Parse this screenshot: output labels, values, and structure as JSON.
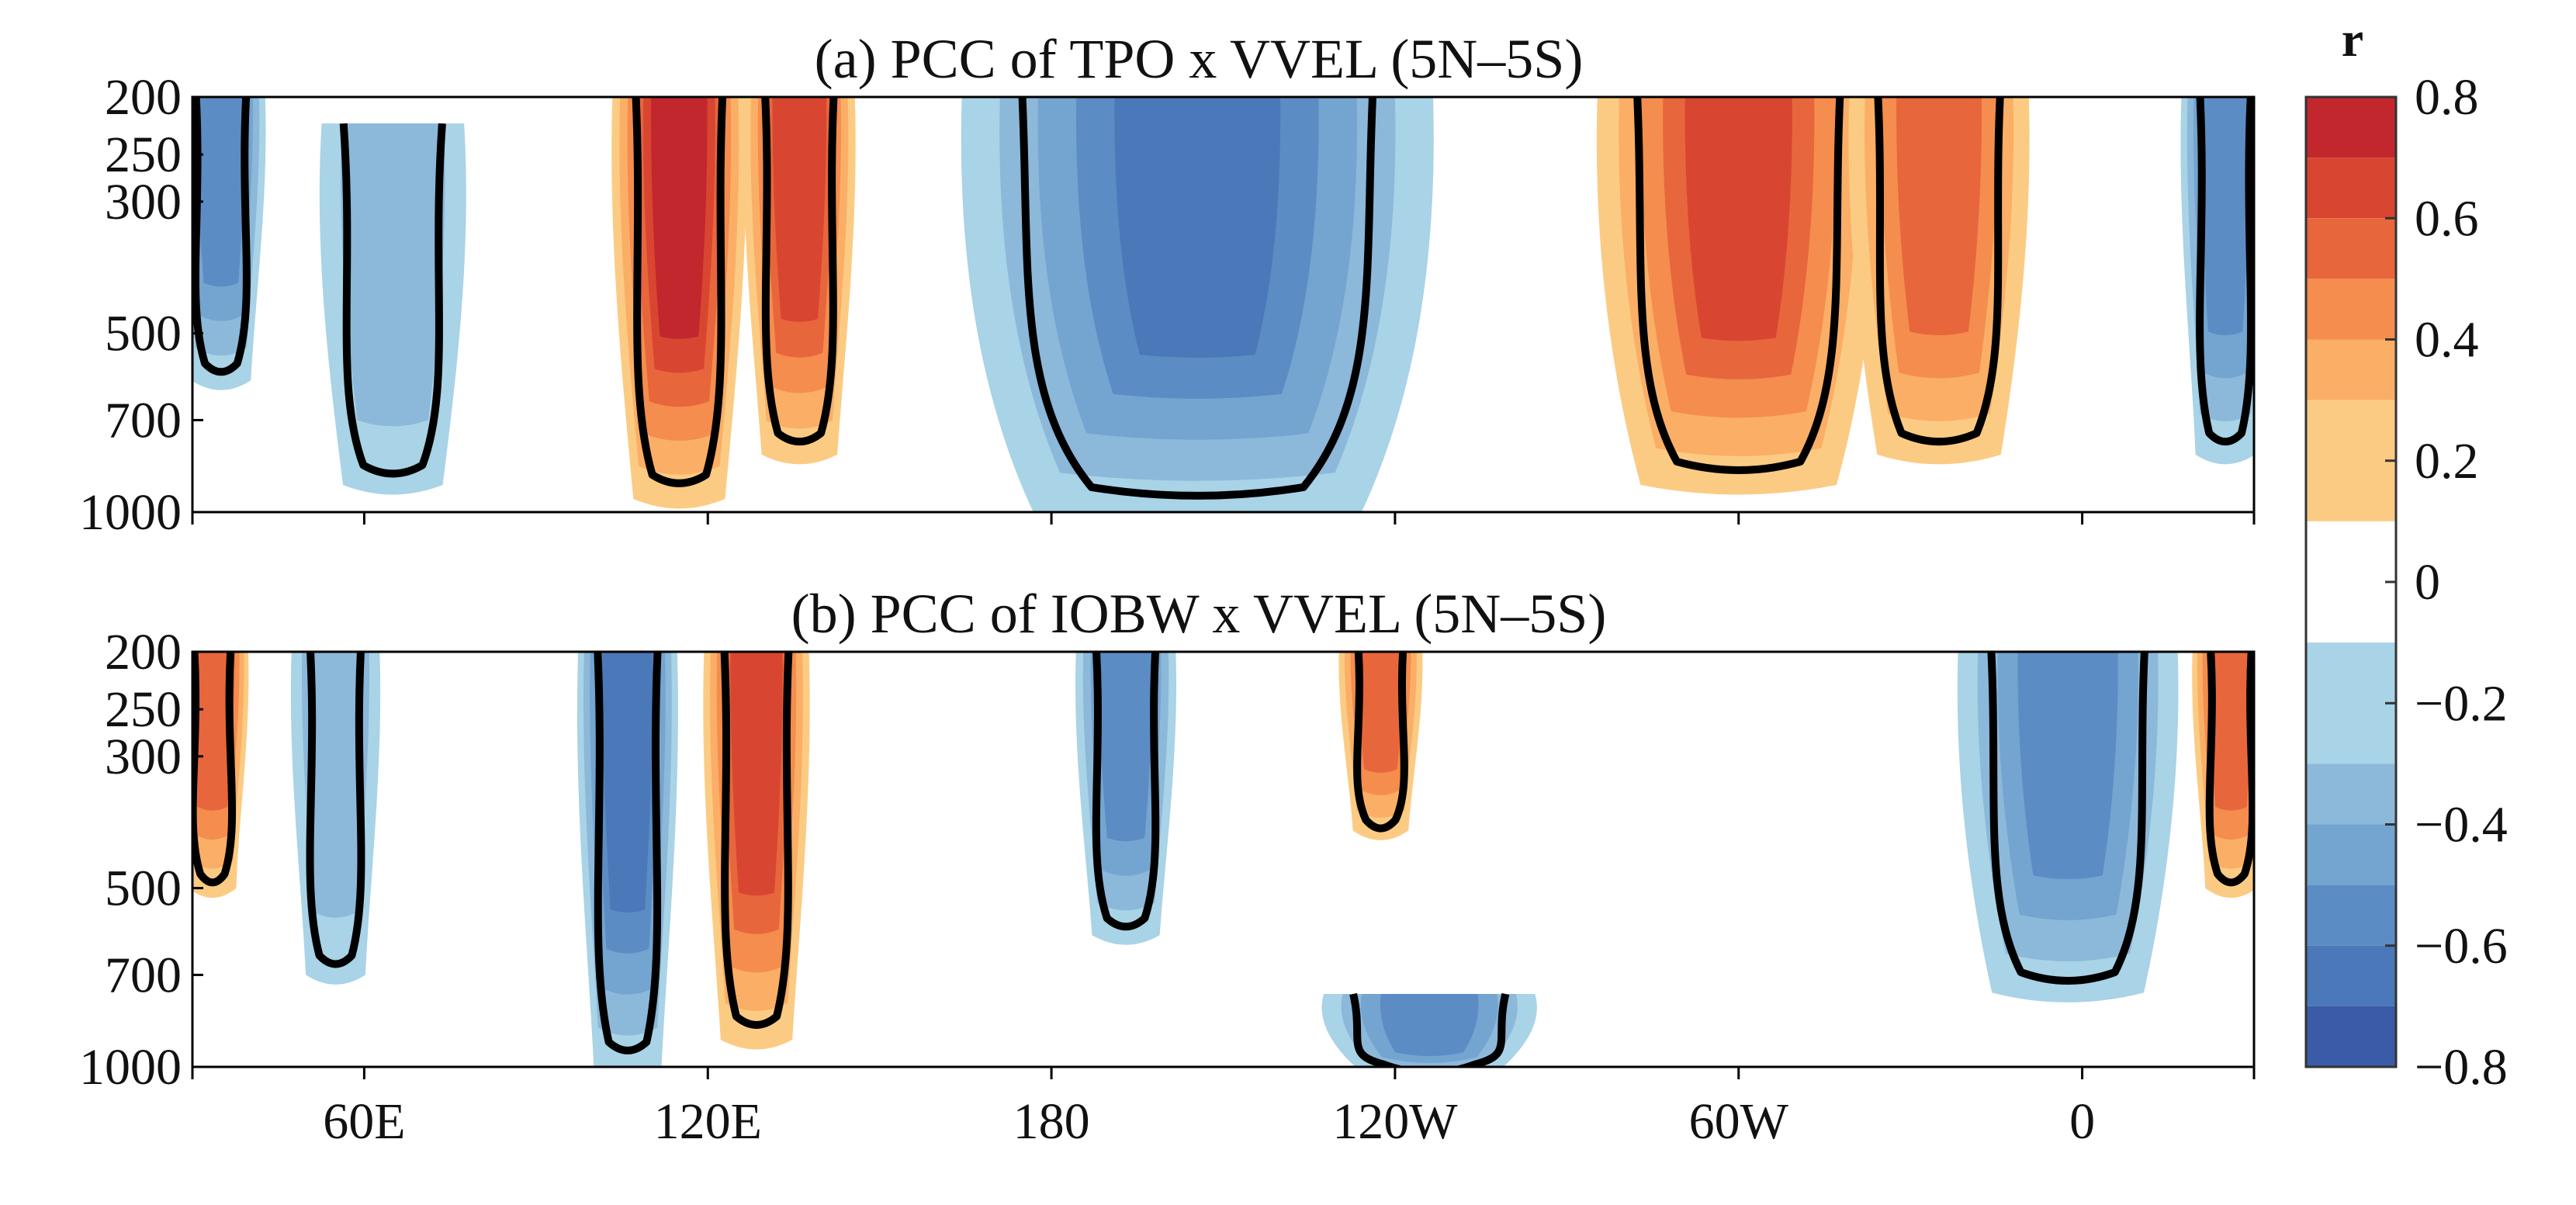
{
  "colors": {
    "levels": [
      "#3a5ba8",
      "#4a78b8",
      "#5c8cc4",
      "#74a4d0",
      "#8cb8da",
      "#a9d3e6",
      "#ffffff",
      "#fccb83",
      "#fbae66",
      "#f48d4d",
      "#e8663c",
      "#d84631",
      "#c1272d"
    ],
    "contour": "#000000"
  },
  "colorbar": {
    "title": "r",
    "ticks": [
      "0.8",
      "0.6",
      "0.4",
      "0.2",
      "0",
      "−0.2",
      "−0.4",
      "−0.6",
      "−0.8"
    ],
    "range": [
      -0.8,
      0.8
    ]
  },
  "chart_data": [
    {
      "type": "heatmap",
      "title": "(a) PCC of TPO x VVEL (5N–5S)",
      "x_ticks": [
        "60E",
        "120E",
        "180",
        "120W",
        "60W",
        "0"
      ],
      "y_ticks": [
        "200",
        "250",
        "300",
        "500",
        "700",
        "1000"
      ],
      "xlim": [
        30,
        390
      ],
      "ylim": [
        1000,
        200
      ],
      "features": [
        {
          "sign": "neg",
          "x": [
            30,
            40
          ],
          "top": 200,
          "bottom": 600,
          "peak": -0.4
        },
        {
          "sign": "neg",
          "x": [
            55,
            75
          ],
          "top": 250,
          "bottom": 900,
          "peak": -0.2
        },
        {
          "sign": "pos",
          "x": [
            106,
            124
          ],
          "top": 200,
          "bottom": 950,
          "peak": 0.6
        },
        {
          "sign": "pos",
          "x": [
            129,
            143
          ],
          "top": 200,
          "bottom": 800,
          "peak": 0.5
        },
        {
          "sign": "neg",
          "x": [
            167,
            244
          ],
          "top": 200,
          "bottom": 1000,
          "peak": -0.5
        },
        {
          "sign": "pos",
          "x": [
            278,
            322
          ],
          "top": 200,
          "bottom": 900,
          "peak": 0.5
        },
        {
          "sign": "pos",
          "x": [
            322,
            348
          ],
          "top": 200,
          "bottom": 800,
          "peak": 0.4
        },
        {
          "sign": "neg",
          "x": [
            380,
            390
          ],
          "top": 200,
          "bottom": 800,
          "peak": -0.4
        }
      ]
    },
    {
      "type": "heatmap",
      "title": "(b) PCC of IOBW x VVEL (5N–5S)",
      "x_ticks": [
        "60E",
        "120E",
        "180",
        "120W",
        "60W",
        "0"
      ],
      "y_ticks": [
        "200",
        "250",
        "300",
        "500",
        "700",
        "1000"
      ],
      "xlim": [
        30,
        390
      ],
      "ylim": [
        1000,
        200
      ],
      "features": [
        {
          "sign": "pos",
          "x": [
            30,
            37
          ],
          "top": 200,
          "bottom": 500,
          "peak": 0.4
        },
        {
          "sign": "neg",
          "x": [
            50,
            60
          ],
          "top": 200,
          "bottom": 700,
          "peak": -0.2
        },
        {
          "sign": "neg",
          "x": [
            100,
            112
          ],
          "top": 200,
          "bottom": 1000,
          "peak": -0.5
        },
        {
          "sign": "pos",
          "x": [
            122,
            135
          ],
          "top": 200,
          "bottom": 900,
          "peak": 0.5
        },
        {
          "sign": "neg",
          "x": [
            187,
            199
          ],
          "top": 200,
          "bottom": 600,
          "peak": -0.4
        },
        {
          "sign": "pos",
          "x": [
            233,
            242
          ],
          "top": 200,
          "bottom": 400,
          "peak": 0.4
        },
        {
          "sign": "neg",
          "x": [
            230,
            262
          ],
          "top": 850,
          "bottom": 1000,
          "peak": -0.4
        },
        {
          "sign": "neg",
          "x": [
            341,
            374
          ],
          "top": 200,
          "bottom": 750,
          "peak": -0.4
        },
        {
          "sign": "pos",
          "x": [
            382,
            390
          ],
          "top": 200,
          "bottom": 500,
          "peak": 0.4
        }
      ]
    }
  ]
}
